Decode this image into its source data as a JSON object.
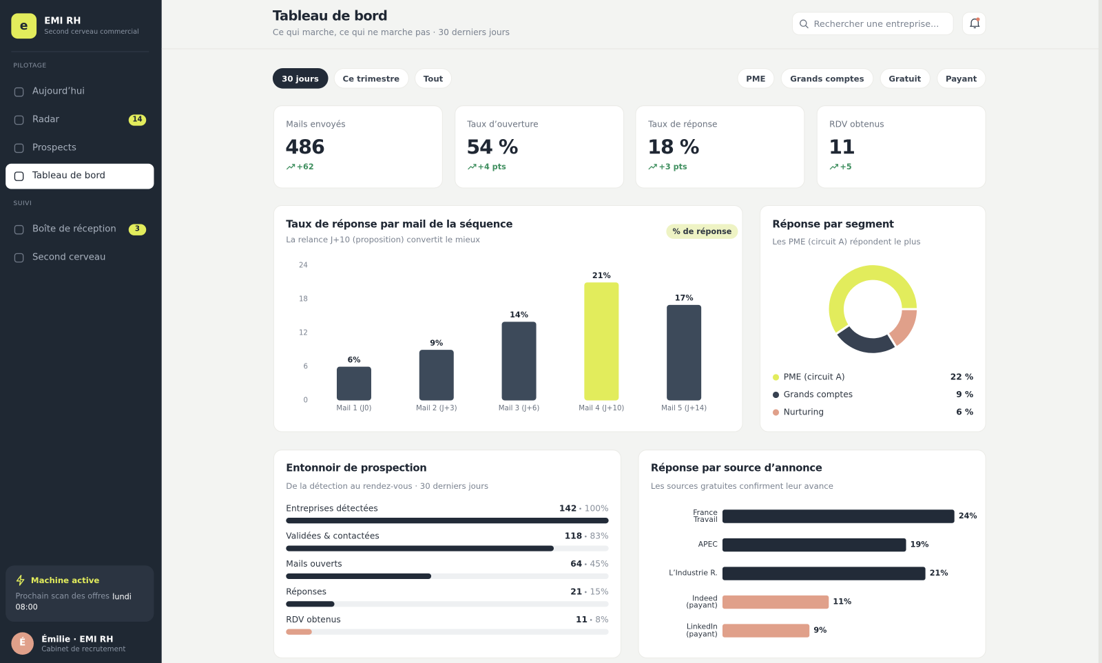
{
  "sidebar": {
    "logo": "e",
    "brand": "EMI RH",
    "tagline": "Second cerveau commercial",
    "sections": [
      {
        "title": "PILOTAGE",
        "items": [
          {
            "label": "Aujourd’hui"
          },
          {
            "label": "Radar",
            "badge": 14
          },
          {
            "label": "Prospects"
          },
          {
            "label": "Tableau de bord",
            "active": true
          }
        ]
      },
      {
        "title": "SUIVI",
        "items": [
          {
            "label": "Boîte de réception",
            "badge": 3
          },
          {
            "label": "Second cerveau"
          }
        ]
      }
    ],
    "status": {
      "title": "Machine active",
      "text": "Prochain scan des offres :",
      "time": "lundi 08:00"
    },
    "user": {
      "initial": "É",
      "name": "Émilie · EMI RH",
      "role": "Cabinet de recrutement"
    }
  },
  "header": {
    "title": "Tableau de bord",
    "subtitle": "Ce qui marche, ce qui ne marche pas · 30 derniers jours",
    "search_placeholder": "Rechercher une entreprise..."
  },
  "filters": {
    "period": [
      "30 jours",
      "Ce trimestre",
      "Tout"
    ],
    "active": 0,
    "segments": [
      "PME",
      "Grands comptes",
      "Gratuit",
      "Payant"
    ]
  },
  "kpis": [
    {
      "label": "Mails envoyés",
      "value": "486",
      "delta": "+62"
    },
    {
      "label": "Taux d’ouverture",
      "value": "54 %",
      "delta": "+4 pts"
    },
    {
      "label": "Taux de réponse",
      "value": "18 %",
      "delta": "+3 pts"
    },
    {
      "label": "RDV obtenus",
      "value": "11",
      "delta": "+5"
    }
  ],
  "chart_data": [
    {
      "type": "bar",
      "title": "Taux de réponse par mail de la séquence",
      "subtitle": "La relance J+10 (proposition) convertit le mieux",
      "categories": [
        "Mail 1 (J0)",
        "Mail 2 (J+3)",
        "Mail 3 (J+6)",
        "Mail 4 (J+10)",
        "Mail 5 (J+14)"
      ],
      "series": [
        {
          "name": "% de réponse",
          "values": [
            6,
            9,
            14,
            21,
            17
          ],
          "value_labels": [
            "6%",
            "9%",
            "14%",
            "21%",
            "17%"
          ],
          "colors": [
            "#3d4a5a",
            "#3d4a5a",
            "#3d4a5a",
            "#e2ec5c",
            "#3d4a5a"
          ]
        }
      ],
      "ylim": [
        0,
        24
      ],
      "yticks": [
        0,
        6,
        12,
        18,
        24
      ],
      "grid": false
    },
    {
      "type": "donut",
      "title": "Réponse par segment",
      "subtitle": "Les PME (circuit A) répondent le plus",
      "categories": [
        "PME (circuit A)",
        "Grands comptes",
        "Nurturing"
      ],
      "values": [
        22,
        9,
        6
      ],
      "value_labels": [
        "22 %",
        "9 %",
        "6 %"
      ],
      "colors": [
        "#e2ec5c",
        "#374151",
        "#e0a08a"
      ]
    },
    {
      "type": "funnel",
      "title": "Entonnoir de prospection",
      "subtitle": "De la détection au rendez-vous · 30 derniers jours",
      "categories": [
        "Entreprises détectées",
        "Validées & contactées",
        "Mails ouverts",
        "Réponses",
        "RDV obtenus"
      ],
      "values": [
        142,
        118,
        64,
        21,
        11
      ],
      "percents": [
        100,
        83,
        45,
        15,
        8
      ],
      "percent_labels": [
        "100%",
        "83%",
        "45%",
        "15%",
        "8%"
      ],
      "colors": [
        "#222b38",
        "#222b38",
        "#222b38",
        "#222b38",
        "#e0a08a"
      ]
    },
    {
      "type": "hbar",
      "title": "Réponse par source d’annonce",
      "subtitle": "Les sources gratuites confirment leur avance",
      "categories": [
        "France Travail",
        "APEC",
        "L’Industrie R.",
        "Indeed (payant)",
        "LinkedIn (payant)"
      ],
      "values": [
        24,
        19,
        21,
        11,
        9
      ],
      "value_labels": [
        "24%",
        "19%",
        "21%",
        "11%",
        "9%"
      ],
      "colors": [
        "#222b38",
        "#222b38",
        "#222b38",
        "#e0a08a",
        "#e0a08a"
      ]
    }
  ]
}
